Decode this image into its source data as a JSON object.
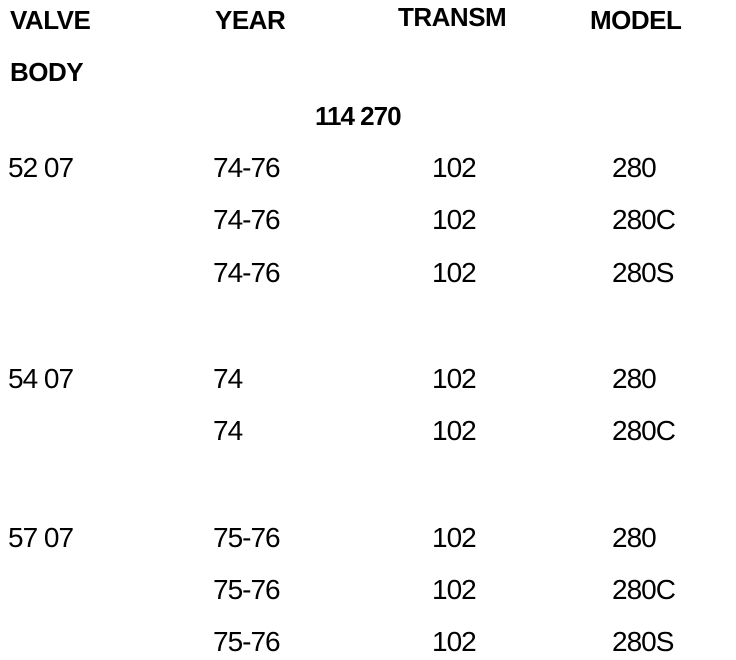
{
  "table": {
    "header": [
      "VALVE BODY",
      "YEAR",
      "TRANSM",
      "MODEL"
    ],
    "section": "114 270",
    "groups": [
      {
        "body": "52 07",
        "rows": [
          [
            "74-76",
            "102",
            "280"
          ],
          [
            "74-76",
            "102",
            "280C"
          ],
          [
            "74-76",
            "102",
            "280S"
          ]
        ]
      },
      {
        "body": "54 07",
        "rows": [
          [
            "74",
            "102",
            "280"
          ],
          [
            "74",
            "102",
            "280C"
          ]
        ]
      },
      {
        "body": "57 07",
        "rows": [
          [
            "75-76",
            "102",
            "280"
          ],
          [
            "75-76",
            "102",
            "280C"
          ],
          [
            "75-76",
            "102",
            "280S"
          ]
        ]
      }
    ]
  }
}
